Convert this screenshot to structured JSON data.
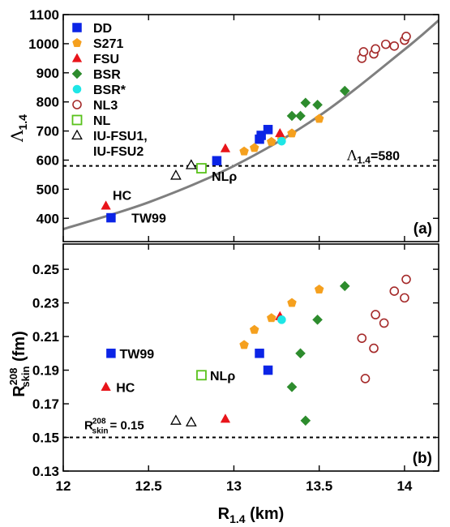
{
  "chart_data": [
    {
      "type": "scatter",
      "panel_label": "(a)",
      "xlim": [
        12,
        14.2
      ],
      "ylim": [
        320,
        1100
      ],
      "ylabel": "Λ",
      "ylabel_sub": "1.4",
      "yticks": [
        400,
        500,
        600,
        700,
        800,
        900,
        1000,
        1100
      ],
      "grid": false,
      "legend_position": "top-left",
      "reference_line": {
        "y": 580,
        "label": "Λ",
        "label_sub": "1.4",
        "label_suffix": "=580"
      },
      "fit_curve": {
        "color": "#7f7f7f",
        "points": [
          [
            12,
            363
          ],
          [
            12.5,
            455
          ],
          [
            13.0,
            580
          ],
          [
            13.5,
            752
          ],
          [
            14.0,
            980
          ],
          [
            14.2,
            1080
          ]
        ]
      },
      "annotations": [
        {
          "text": "HC",
          "x": 12.29,
          "y": 480
        },
        {
          "text": "TW99",
          "x": 12.4,
          "y": 402
        },
        {
          "text": "NLρ",
          "x": 12.87,
          "y": 545
        }
      ],
      "series": [
        {
          "name": "DD",
          "marker": "square",
          "color": "#0b24e6",
          "filled": true,
          "points": [
            [
              12.28,
              402
            ],
            [
              12.9,
              598
            ],
            [
              13.15,
              672
            ],
            [
              13.16,
              685
            ],
            [
              13.2,
              705
            ]
          ]
        },
        {
          "name": "S271",
          "marker": "pentagon",
          "color": "#f5a01e",
          "filled": true,
          "points": [
            [
              13.06,
              630
            ],
            [
              13.12,
              642
            ],
            [
              13.22,
              663
            ],
            [
              13.28,
              672
            ],
            [
              13.34,
              692
            ],
            [
              13.5,
              742
            ]
          ]
        },
        {
          "name": "FSU",
          "marker": "triangle",
          "color": "#e8141a",
          "filled": true,
          "points": [
            [
              12.25,
              443
            ],
            [
              12.95,
              640
            ],
            [
              13.27,
              692
            ]
          ]
        },
        {
          "name": "BSR",
          "marker": "diamond",
          "color": "#2d8c2d",
          "filled": true,
          "points": [
            [
              13.34,
              752
            ],
            [
              13.39,
              752
            ],
            [
              13.42,
              797
            ],
            [
              13.49,
              790
            ],
            [
              13.65,
              838
            ]
          ]
        },
        {
          "name": "BSR*",
          "marker": "circle",
          "color": "#1ee6e6",
          "filled": true,
          "points": [
            [
              13.28,
              665
            ]
          ]
        },
        {
          "name": "NL3",
          "marker": "circle",
          "color": "#a52a2a",
          "filled": false,
          "points": [
            [
              13.75,
              950
            ],
            [
              13.76,
              972
            ],
            [
              13.82,
              965
            ],
            [
              13.83,
              982
            ],
            [
              13.89,
              998
            ],
            [
              13.94,
              992
            ],
            [
              14.0,
              1012
            ],
            [
              14.01,
              1025
            ]
          ]
        },
        {
          "name": "NL",
          "marker": "square",
          "color": "#59c21b",
          "filled": false,
          "points": [
            [
              12.81,
              572
            ]
          ]
        },
        {
          "name": "IU-FSU1,",
          "name_line2": "IU-FSU2",
          "marker": "triangle",
          "color": "#000000",
          "filled": false,
          "points": [
            [
              12.66,
              547
            ],
            [
              12.75,
              583
            ]
          ]
        }
      ]
    },
    {
      "type": "scatter",
      "panel_label": "(b)",
      "xlim": [
        12,
        14.2
      ],
      "ylim": [
        0.13,
        0.265
      ],
      "xlabel": "R",
      "xlabel_sub": "1.4",
      "xlabel_suffix": " (km)",
      "xticks": [
        "12",
        "12.5",
        "13",
        "13.5",
        "14"
      ],
      "xtick_values": [
        12,
        12.5,
        13,
        13.5,
        14
      ],
      "ylabel": "R",
      "ylabel_sub": "skin",
      "ylabel_sup": "208",
      "ylabel_suffix": " (fm)",
      "yticks": [
        "0.13",
        "0.15",
        "0.17",
        "0.19",
        "0.21",
        "0.23",
        "0.25"
      ],
      "ytick_values": [
        0.13,
        0.15,
        0.17,
        0.19,
        0.21,
        0.23,
        0.25
      ],
      "grid": false,
      "reference_line": {
        "y": 0.15,
        "label": "R",
        "label_sub": "skin",
        "label_sup": "208",
        "label_suffix": "= 0.15"
      },
      "annotations": [
        {
          "text": "TW99",
          "x": 12.33,
          "y": 0.2
        },
        {
          "text": "HC",
          "x": 12.31,
          "y": 0.18
        },
        {
          "text": "NLρ",
          "x": 12.86,
          "y": 0.187
        }
      ],
      "series": [
        {
          "name": "DD",
          "marker": "square",
          "color": "#0b24e6",
          "filled": true,
          "points": [
            [
              12.28,
              0.2
            ],
            [
              13.15,
              0.2
            ],
            [
              13.2,
              0.19
            ]
          ]
        },
        {
          "name": "S271",
          "marker": "pentagon",
          "color": "#f5a01e",
          "filled": true,
          "points": [
            [
              13.06,
              0.205
            ],
            [
              13.12,
              0.214
            ],
            [
              13.22,
              0.221
            ],
            [
              13.34,
              0.23
            ],
            [
              13.5,
              0.238
            ]
          ]
        },
        {
          "name": "FSU",
          "marker": "triangle",
          "color": "#e8141a",
          "filled": true,
          "points": [
            [
              12.25,
              0.18
            ],
            [
              12.95,
              0.161
            ],
            [
              13.27,
              0.222
            ]
          ]
        },
        {
          "name": "BSR",
          "marker": "diamond",
          "color": "#2d8c2d",
          "filled": true,
          "points": [
            [
              13.34,
              0.18
            ],
            [
              13.39,
              0.2
            ],
            [
              13.42,
              0.16
            ],
            [
              13.49,
              0.22
            ],
            [
              13.65,
              0.24
            ]
          ]
        },
        {
          "name": "BSR*",
          "marker": "circle",
          "color": "#1ee6e6",
          "filled": true,
          "points": [
            [
              13.28,
              0.22
            ]
          ]
        },
        {
          "name": "NL3",
          "marker": "circle",
          "color": "#a52a2a",
          "filled": false,
          "points": [
            [
              13.75,
              0.209
            ],
            [
              13.77,
              0.185
            ],
            [
              13.82,
              0.203
            ],
            [
              13.83,
              0.223
            ],
            [
              13.88,
              0.218
            ],
            [
              13.94,
              0.237
            ],
            [
              14.0,
              0.233
            ],
            [
              14.01,
              0.244
            ]
          ]
        },
        {
          "name": "NL",
          "marker": "square",
          "color": "#59c21b",
          "filled": false,
          "points": [
            [
              12.81,
              0.187
            ]
          ]
        },
        {
          "name": "IU-FSU1,",
          "marker": "triangle",
          "color": "#000000",
          "filled": false,
          "points": [
            [
              12.66,
              0.16
            ],
            [
              12.75,
              0.159
            ]
          ]
        }
      ]
    }
  ]
}
